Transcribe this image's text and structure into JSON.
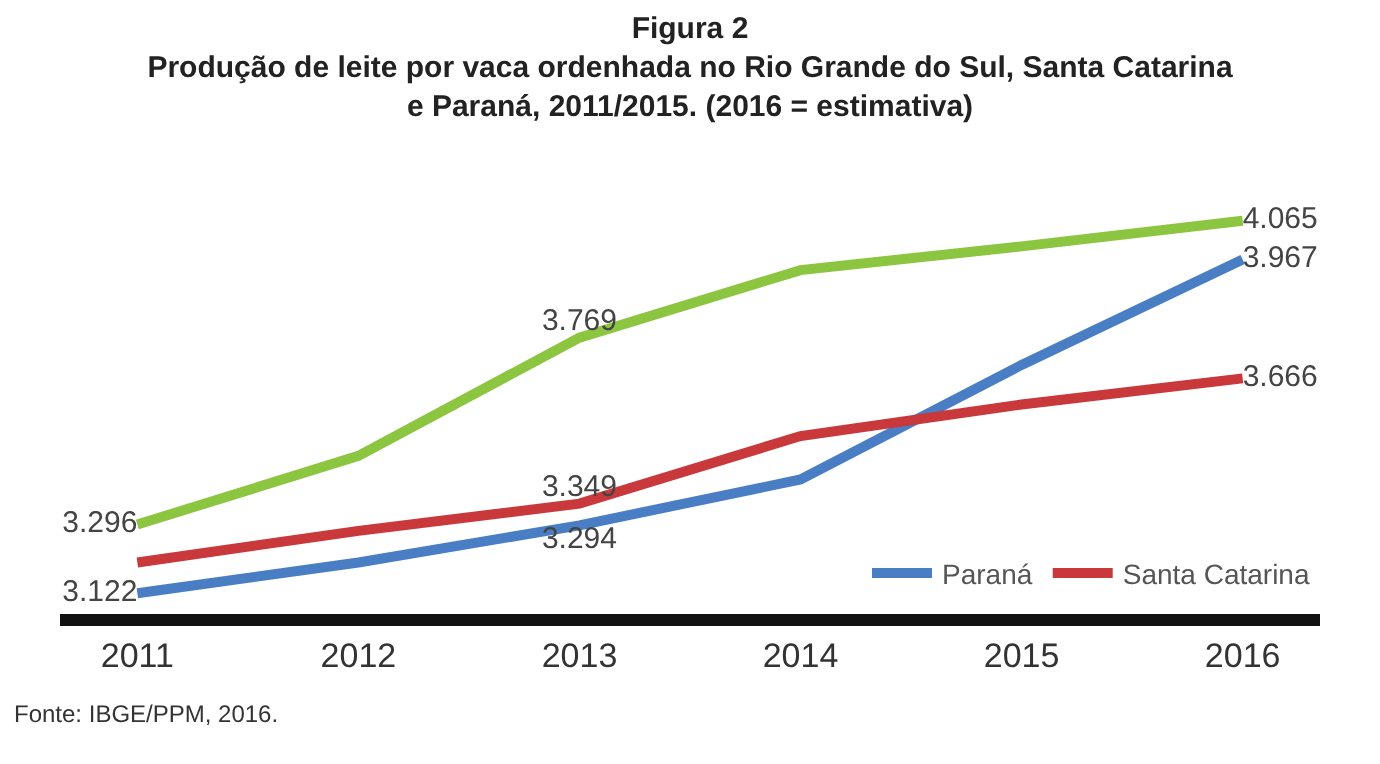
{
  "chart_data": {
    "type": "line",
    "title": "Figura 2",
    "subtitle": "Produção de leite por vaca ordenhada no Rio Grande do Sul, Santa Catarina e Paraná, 2011/2015. (2016 = estimativa)",
    "categories": [
      "2011",
      "2012",
      "2013",
      "2014",
      "2015",
      "2016"
    ],
    "series": [
      {
        "color": "#8cc540",
        "values": [
          3296,
          3470,
          3769,
          3940,
          4000,
          4065
        ],
        "value_labels": [
          "3.296",
          null,
          "3.769",
          null,
          null,
          "4.065"
        ]
      },
      {
        "name": "Paraná",
        "color": "#4a7ec4",
        "values": [
          3122,
          3200,
          3294,
          3410,
          3700,
          3967
        ],
        "value_labels": [
          "3.122",
          null,
          "3.294",
          null,
          null,
          "3.967"
        ]
      },
      {
        "name": "Santa Catarina",
        "color": "#c9383a",
        "values": [
          3200,
          3280,
          3349,
          3520,
          3600,
          3666
        ],
        "value_labels": [
          null,
          null,
          "3.349",
          null,
          null,
          "3.666"
        ]
      }
    ],
    "legend": "bottom right",
    "marker": "none",
    "line_style": "solid",
    "annotations": [
      "Fonte: IBGE/PPM, 2016."
    ]
  }
}
